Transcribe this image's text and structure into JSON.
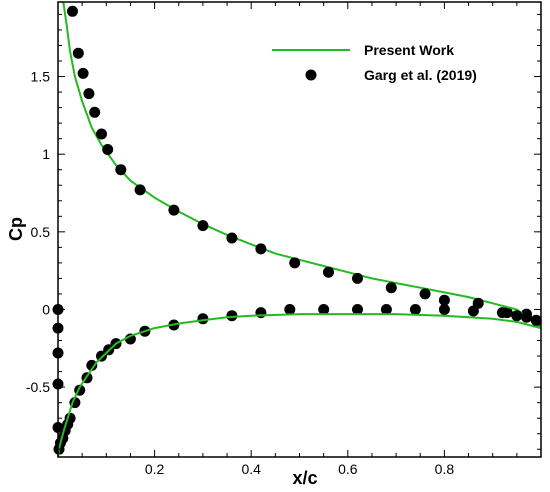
{
  "chart_data": {
    "type": "line",
    "xlabel": "x/c",
    "ylabel": "Cp",
    "xlim": [
      0,
      1
    ],
    "ylim": [
      -0.95,
      1.98
    ],
    "xticks": [
      {
        "value": 0.2,
        "label": "0.2"
      },
      {
        "value": 0.4,
        "label": "0.4"
      },
      {
        "value": 0.6,
        "label": "0.6"
      },
      {
        "value": 0.8,
        "label": "0.8"
      }
    ],
    "yticks": [
      {
        "value": 1.5,
        "label": "1.5"
      },
      {
        "value": 1,
        "label": "1"
      },
      {
        "value": 0.5,
        "label": "0.5"
      },
      {
        "value": 0,
        "label": "0"
      },
      {
        "value": -0.5,
        "label": "-0.5"
      }
    ],
    "grid": false,
    "legend_position": "top-right",
    "series": [
      {
        "name": "Present Work",
        "kind": "line",
        "color": "#22bb22",
        "segments": [
          {
            "part": "upper",
            "x": [
              0.011,
              0.018,
              0.025,
              0.035,
              0.05,
              0.07,
              0.09,
              0.12,
              0.15,
              0.2,
              0.25,
              0.3,
              0.35,
              0.4,
              0.45,
              0.5,
              0.55,
              0.6,
              0.65,
              0.7,
              0.75,
              0.8,
              0.85,
              0.9,
              0.95,
              1.0
            ],
            "y": [
              1.98,
              1.83,
              1.66,
              1.5,
              1.34,
              1.17,
              1.06,
              0.93,
              0.83,
              0.72,
              0.63,
              0.55,
              0.48,
              0.42,
              0.36,
              0.32,
              0.28,
              0.24,
              0.2,
              0.17,
              0.14,
              0.11,
              0.08,
              0.04,
              0.0,
              -0.12
            ]
          },
          {
            "part": "lower",
            "x": [
              0.0,
              0.002,
              0.006,
              0.012,
              0.02,
              0.03,
              0.045,
              0.06,
              0.08,
              0.1,
              0.12,
              0.15,
              0.2,
              0.25,
              0.3,
              0.35,
              0.4,
              0.5,
              0.6,
              0.7,
              0.8,
              0.85,
              0.9,
              0.95,
              1.0
            ],
            "y": [
              -0.95,
              -0.9,
              -0.85,
              -0.78,
              -0.7,
              -0.6,
              -0.5,
              -0.43,
              -0.34,
              -0.28,
              -0.22,
              -0.17,
              -0.12,
              -0.09,
              -0.07,
              -0.05,
              -0.04,
              -0.03,
              -0.03,
              -0.03,
              -0.04,
              -0.05,
              -0.06,
              -0.08,
              -0.12
            ]
          }
        ]
      },
      {
        "name": "Garg et al. (2019)",
        "kind": "scatter",
        "color": "#000000",
        "segments": [
          {
            "part": "upper",
            "x": [
              0.03,
              0.042,
              0.052,
              0.064,
              0.076,
              0.09,
              0.103,
              0.13,
              0.17,
              0.24,
              0.3,
              0.36,
              0.42,
              0.49,
              0.56,
              0.62,
              0.69,
              0.76,
              0.8,
              0.87,
              0.92,
              0.95,
              0.97,
              0.99
            ],
            "y": [
              1.92,
              1.65,
              1.52,
              1.39,
              1.27,
              1.13,
              1.03,
              0.9,
              0.77,
              0.64,
              0.54,
              0.46,
              0.39,
              0.3,
              0.24,
              0.2,
              0.14,
              0.1,
              0.06,
              0.04,
              -0.02,
              -0.04,
              -0.05,
              -0.07
            ]
          },
          {
            "part": "lower",
            "x": [
              0.0,
              0.0,
              0.0,
              0.0,
              0.0,
              0.002,
              0.005,
              0.01,
              0.015,
              0.02,
              0.025,
              0.035,
              0.045,
              0.06,
              0.07,
              0.09,
              0.105,
              0.12,
              0.15,
              0.18,
              0.24,
              0.3,
              0.36,
              0.42,
              0.48,
              0.55,
              0.62,
              0.68,
              0.74,
              0.8,
              0.86,
              0.93,
              0.97
            ],
            "y": [
              0.0,
              -0.12,
              -0.28,
              -0.48,
              -0.76,
              -0.9,
              -0.86,
              -0.83,
              -0.78,
              -0.74,
              -0.7,
              -0.6,
              -0.52,
              -0.44,
              -0.36,
              -0.3,
              -0.26,
              -0.22,
              -0.19,
              -0.14,
              -0.1,
              -0.06,
              -0.04,
              -0.02,
              0.0,
              0.0,
              0.0,
              0.0,
              0.0,
              0.0,
              -0.01,
              -0.02,
              -0.03
            ]
          }
        ]
      }
    ]
  }
}
